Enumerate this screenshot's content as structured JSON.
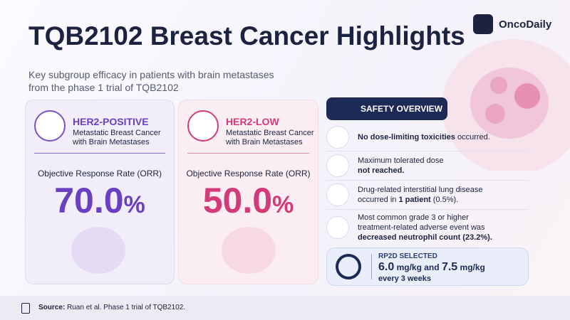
{
  "header": {
    "title": "TQB2102 Breast Cancer Highlights",
    "subtitle_lines": [
      "Key subgroup efficacy in patients with brain metastases",
      "from the phase 1 trial of TQB2102"
    ],
    "brand": "OncoDaily"
  },
  "cards": [
    {
      "label": "HER2-POSITIVE",
      "description_lines": [
        "Metastatic Breast Cancer",
        "with Brain Metastases"
      ],
      "metric": "Objective Response Rate (ORR)",
      "value": "70.0",
      "unit": "%"
    },
    {
      "label": "HER2-LOW",
      "description_lines": [
        "Metastatic Breast Cancer",
        "with Brain Metastases"
      ],
      "metric": "Objective Response Rate (ORR)",
      "value": "50.0",
      "unit": "%"
    }
  ],
  "safety": {
    "title": "SAFETY OVERVIEW",
    "items": [
      {
        "lines": [
          [
            "No dose-limiting toxicities",
            " occurred."
          ]
        ]
      },
      {
        "lines": [
          [
            "Maximum tolerated dose"
          ],
          [
            "not reached."
          ]
        ]
      },
      {
        "lines": [
          [
            "Drug-related interstitial lung disease"
          ],
          [
            "occurred in ",
            "1 patient",
            " (0.5%)."
          ]
        ]
      },
      {
        "lines": [
          [
            "Most common grade 3 or higher"
          ],
          [
            "treatment-related adverse event was"
          ],
          [
            "decreased neutrophil count (23.2%)."
          ]
        ]
      }
    ]
  },
  "rp2d": {
    "title": "RP2D SELECTED",
    "dose_parts": [
      "6.0",
      " mg/kg and ",
      "7.5",
      " mg/kg"
    ],
    "schedule": "every 3 weeks"
  },
  "footer": {
    "source_label": "Source:",
    "source_text": " Ruan et al. Phase 1 trial of TQB2102."
  }
}
